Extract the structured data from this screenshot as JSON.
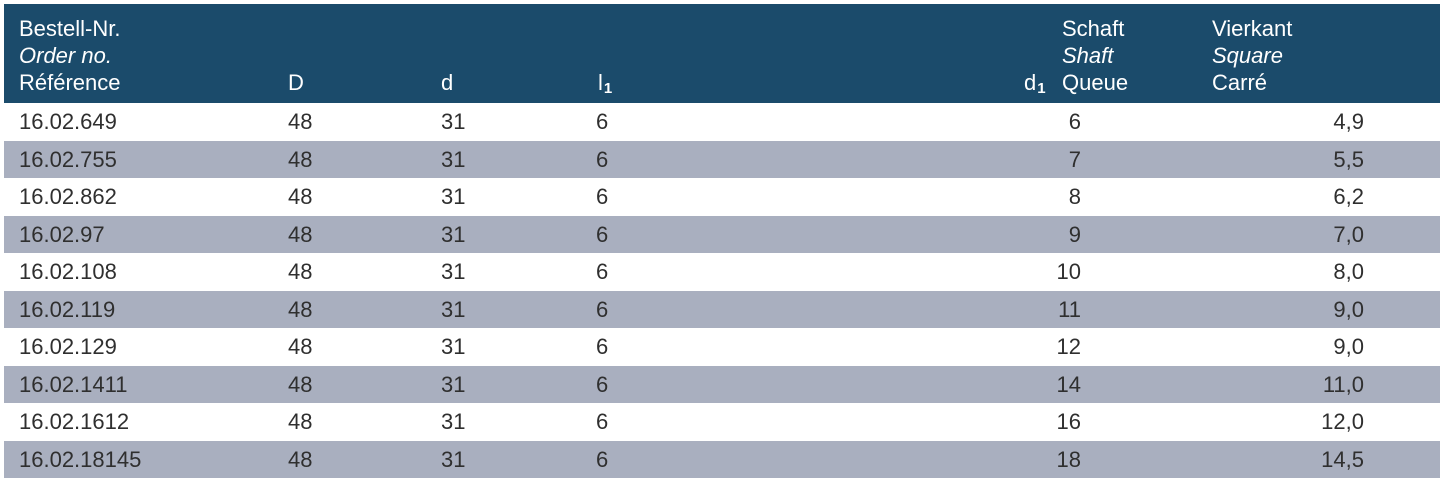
{
  "header": {
    "ref_de": "Bestell-Nr.",
    "ref_en": "Order no.",
    "ref_fr": "Référence",
    "D": "D",
    "d": "d",
    "l1_base": "l",
    "l1_sub": "1",
    "d1_base": "d",
    "d1_sub": "1",
    "shaft_de": "Schaft",
    "shaft_en": "Shaft",
    "shaft_fr": "Queue",
    "square_de": "Vierkant",
    "square_en": "Square",
    "square_fr": "Carré"
  },
  "colors": {
    "header_bg": "#1b4b6b",
    "row_alt_bg": "#a9afbf",
    "row_bg": "#ffffff"
  },
  "rows": [
    {
      "ref": "16.02.649",
      "D": "48",
      "d": "31",
      "l1": "6",
      "shaft": "6",
      "square": "4,9"
    },
    {
      "ref": "16.02.755",
      "D": "48",
      "d": "31",
      "l1": "6",
      "shaft": "7",
      "square": "5,5"
    },
    {
      "ref": "16.02.862",
      "D": "48",
      "d": "31",
      "l1": "6",
      "shaft": "8",
      "square": "6,2"
    },
    {
      "ref": "16.02.97",
      "D": "48",
      "d": "31",
      "l1": "6",
      "shaft": "9",
      "square": "7,0"
    },
    {
      "ref": "16.02.108",
      "D": "48",
      "d": "31",
      "l1": "6",
      "shaft": "10",
      "square": "8,0"
    },
    {
      "ref": "16.02.119",
      "D": "48",
      "d": "31",
      "l1": "6",
      "shaft": "11",
      "square": "9,0"
    },
    {
      "ref": "16.02.129",
      "D": "48",
      "d": "31",
      "l1": "6",
      "shaft": "12",
      "square": "9,0"
    },
    {
      "ref": "16.02.1411",
      "D": "48",
      "d": "31",
      "l1": "6",
      "shaft": "14",
      "square": "11,0"
    },
    {
      "ref": "16.02.1612",
      "D": "48",
      "d": "31",
      "l1": "6",
      "shaft": "16",
      "square": "12,0"
    },
    {
      "ref": "16.02.18145",
      "D": "48",
      "d": "31",
      "l1": "6",
      "shaft": "18",
      "square": "14,5"
    }
  ]
}
